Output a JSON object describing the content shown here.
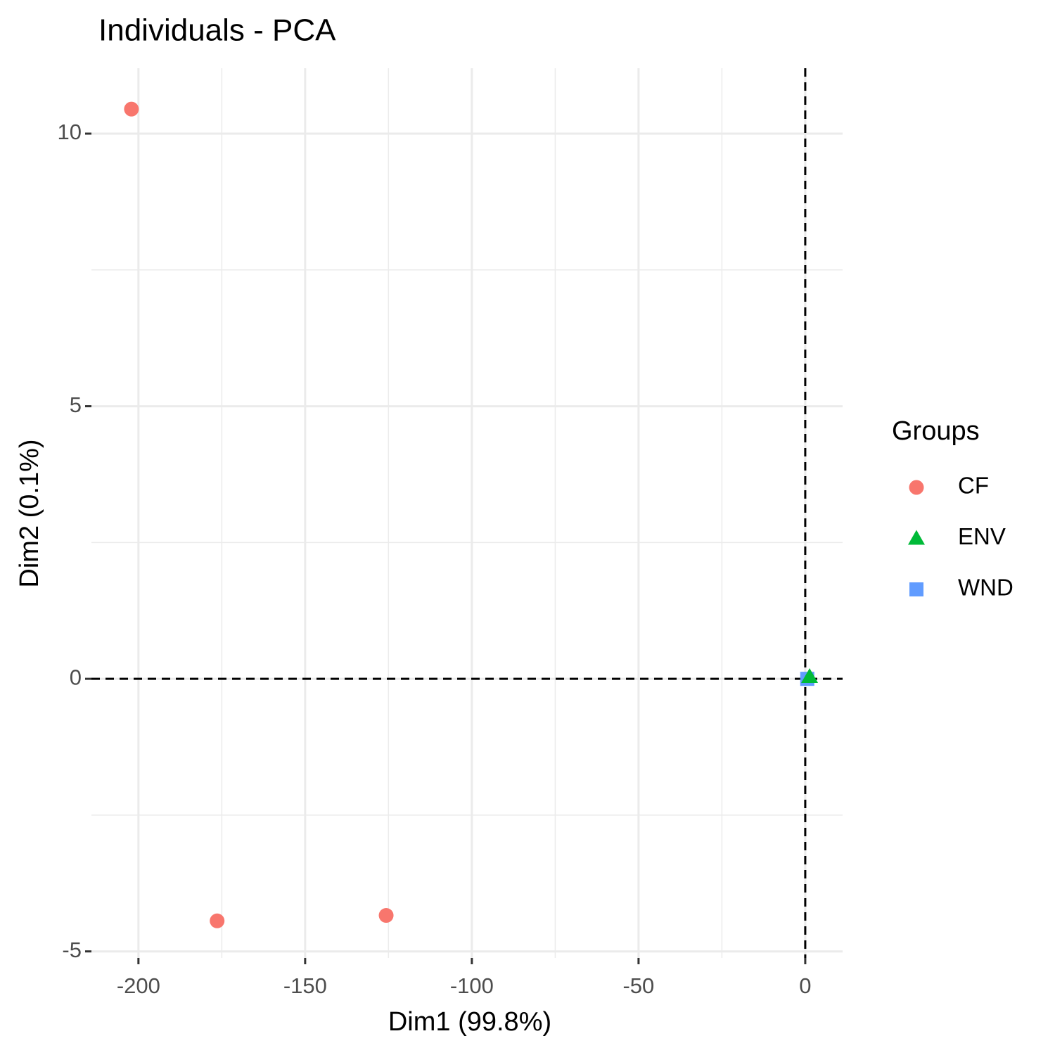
{
  "chart_data": {
    "type": "scatter",
    "title": "Individuals - PCA",
    "x_label": "Dim1 (99.8%)",
    "y_label": "Dim2 (0.1%)",
    "legend_title": "Groups",
    "legend_position": "right",
    "grid": true,
    "xlim": [
      -214.1,
      11.2
    ],
    "ylim": [
      -5.12,
      11.2
    ],
    "xticks": [
      -200,
      -150,
      -100,
      -50,
      0
    ],
    "yticks": [
      -5,
      0,
      5,
      10
    ],
    "xminor_ticks": [
      -175,
      -125,
      -75,
      -25
    ],
    "yminor_ticks": [
      -2.5,
      2.5,
      7.5
    ],
    "reference_x": 0,
    "reference_y": 0,
    "series": [
      {
        "name": "CF",
        "color": "#F8766D",
        "shape": "circle",
        "x": [
          -202.1,
          -176.4,
          -125.7
        ],
        "y": [
          10.45,
          -4.44,
          -4.34
        ]
      },
      {
        "name": "ENV",
        "color": "#00BA38",
        "shape": "triangle",
        "x": [
          1.3
        ],
        "y": [
          0.04
        ]
      },
      {
        "name": "WND",
        "color": "#619CFF",
        "shape": "square",
        "x": [
          0.6
        ],
        "y": [
          0.0
        ]
      }
    ]
  }
}
